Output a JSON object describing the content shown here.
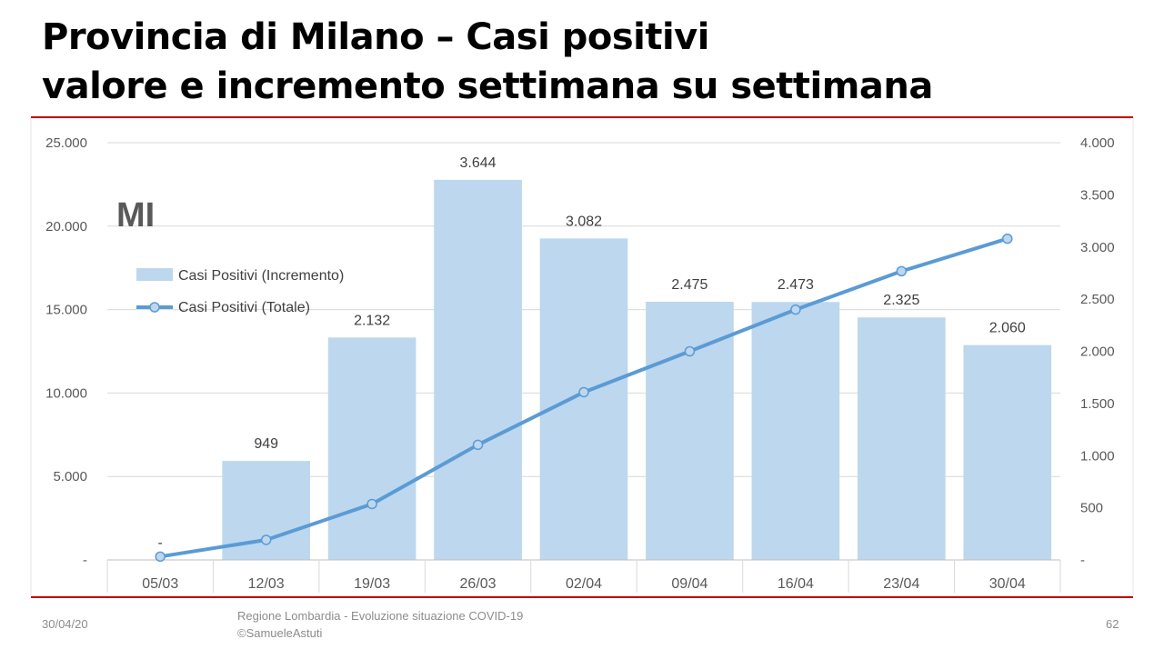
{
  "slide": {
    "title_line1": "Provincia di Milano – Casi positivi",
    "title_line2": "valore e incremento settimana su settimana",
    "date": "30/04/20",
    "source_line1": "Regione Lombardia - Evoluzione situazione COVID-19",
    "source_line2": "©SamueleAstuti",
    "page_number": "62"
  },
  "colors": {
    "bar": "#bdd7ee",
    "line": "#5b9bd5",
    "marker_fill": "#bdd7ee",
    "rule": "#c00000",
    "grid": "#d9d9d9",
    "axis_text": "#595959"
  },
  "chart_data": {
    "type": "bar",
    "annotation": "MI",
    "categories": [
      "05/03",
      "12/03",
      "19/03",
      "26/03",
      "02/04",
      "09/04",
      "16/04",
      "23/04",
      "30/04"
    ],
    "series": [
      {
        "name": "Casi Positivi (Incremento)",
        "type": "bar",
        "axis": "right",
        "values": [
          0,
          949,
          2132,
          3644,
          3082,
          2475,
          2473,
          2325,
          2060
        ],
        "data_labels": [
          "-",
          "949",
          "2.132",
          "3.644",
          "3.082",
          "2.475",
          "2.473",
          "2.325",
          "2.060"
        ]
      },
      {
        "name": "Casi Positivi (Totale)",
        "type": "line",
        "axis": "left",
        "values": [
          200,
          1200,
          3350,
          6900,
          10050,
          12500,
          15000,
          17300,
          19250
        ]
      }
    ],
    "y_left": {
      "range": [
        0,
        25000
      ],
      "ticks": [
        0,
        5000,
        10000,
        15000,
        20000,
        25000
      ],
      "tick_labels": [
        "-",
        "5.000",
        "10.000",
        "15.000",
        "20.000",
        "25.000"
      ]
    },
    "y_right": {
      "range": [
        0,
        4000
      ],
      "ticks": [
        0,
        500,
        1000,
        1500,
        2000,
        2500,
        3000,
        3500,
        4000
      ],
      "tick_labels": [
        "-",
        "500",
        "1.000",
        "1.500",
        "2.000",
        "2.500",
        "3.000",
        "3.500",
        "4.000"
      ]
    },
    "grid": true,
    "legend_position": "top-left"
  }
}
